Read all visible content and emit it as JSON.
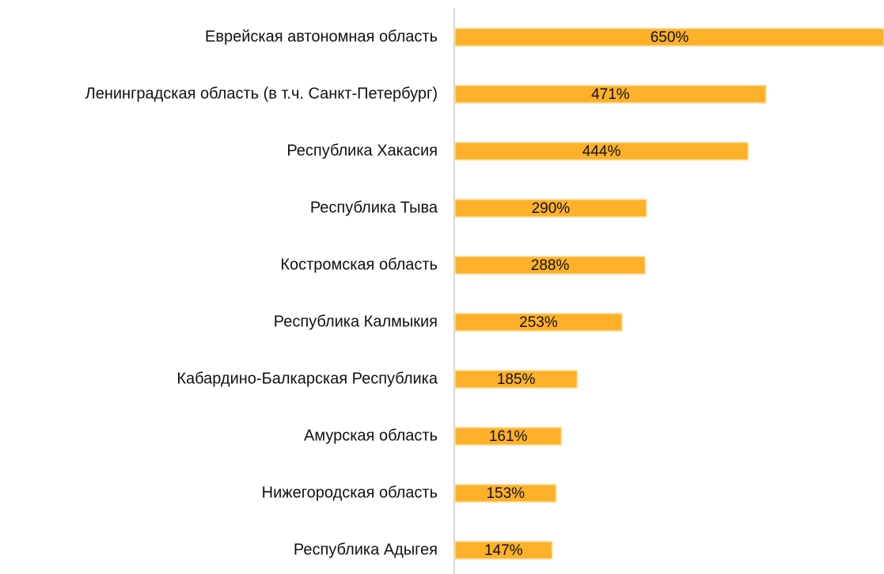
{
  "chart_data": {
    "type": "barh",
    "categories": [
      "Еврейская автономная область",
      "Ленинградская область (в т.ч. Санкт-Петербург)",
      "Республика Хакасия",
      "Республика Тыва",
      "Костромская область",
      "Республика Калмыкия",
      "Кабардино-Балкарская Республика",
      "Амурская область",
      "Нижегородская область",
      "Республика Адыгея"
    ],
    "values": [
      650,
      471,
      444,
      290,
      288,
      253,
      185,
      161,
      153,
      147
    ],
    "value_labels": [
      "650%",
      "471%",
      "444%",
      "290%",
      "288%",
      "253%",
      "185%",
      "161%",
      "153%",
      "147%"
    ],
    "color": "#fdb12a"
  }
}
